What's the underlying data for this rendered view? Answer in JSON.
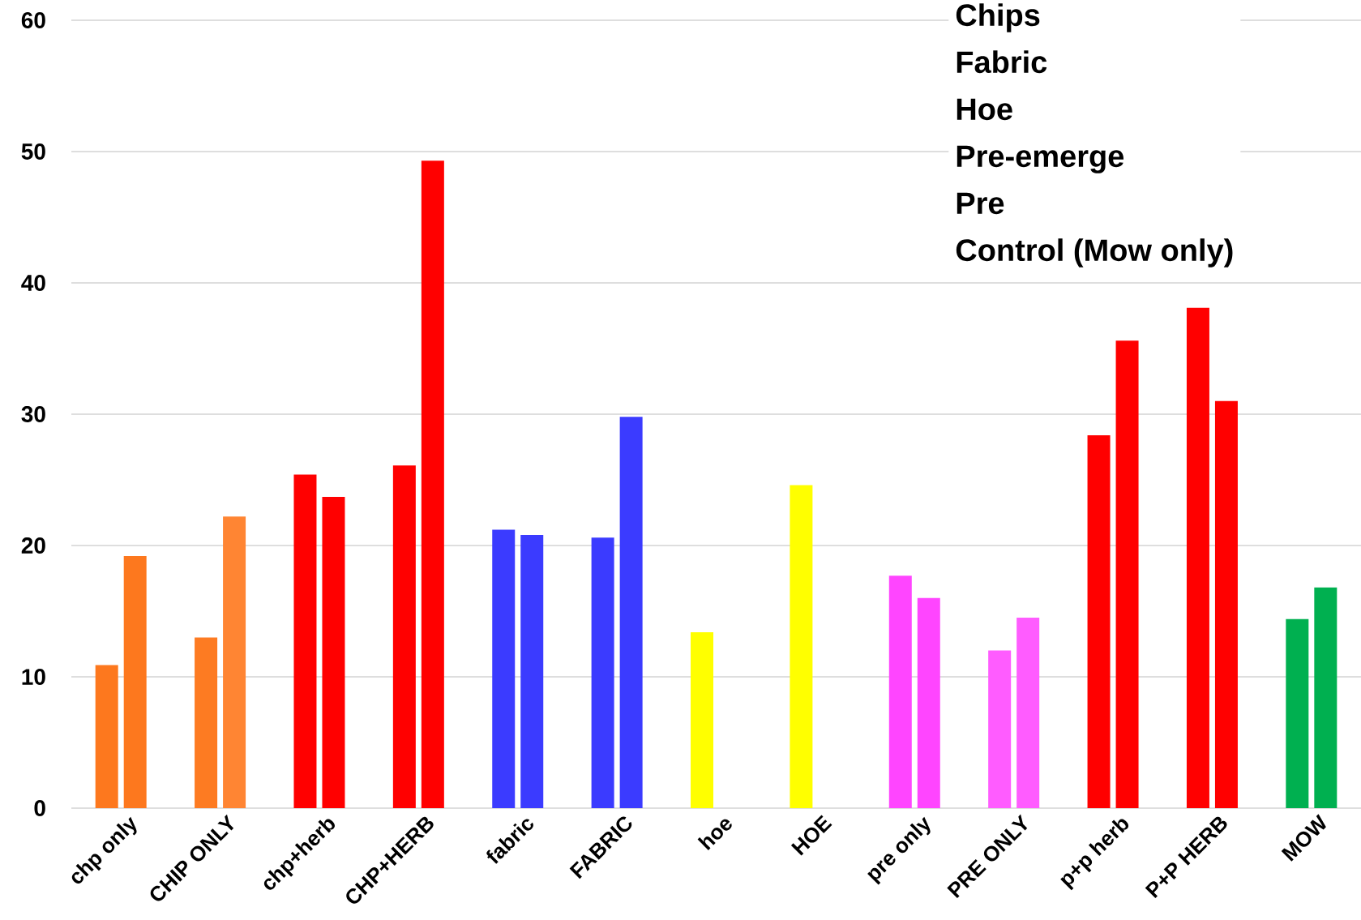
{
  "chart_data": {
    "type": "bar",
    "categories": [
      "chp only",
      "CHIP ONLY",
      "chp+herb",
      "CHP+HERB",
      "fabric",
      "FABRIC",
      "hoe",
      "HOE",
      "pre only",
      "PRE ONLY",
      "p+p herb",
      "P+P HERB",
      "MOW"
    ],
    "series": [
      {
        "colors": [
          "#fd781e",
          "#fd7b22",
          "#ff0000",
          "#ff0000",
          "#3b3bff",
          "#3b3bff",
          "#ffff00",
          "#ffff00",
          "#ff45ff",
          "#ff5cff",
          "#ff0000",
          "#ff0000",
          "#00b050"
        ],
        "values": [
          10.9,
          13.0,
          25.4,
          26.1,
          21.2,
          20.6,
          13.4,
          24.6,
          17.7,
          12.0,
          28.4,
          38.1,
          14.4
        ]
      },
      {
        "colors": [
          "#fd781e",
          "#ff8533",
          "#ff0000",
          "#ff0000",
          "#3b3bff",
          "#3b3bff",
          null,
          null,
          "#ff45ff",
          "#ff5cff",
          "#ff0000",
          "#ff0000",
          "#00b050"
        ],
        "values": [
          19.2,
          22.2,
          23.7,
          49.3,
          20.8,
          29.8,
          null,
          null,
          16.0,
          14.5,
          35.6,
          31.0,
          16.8
        ]
      }
    ],
    "annotations": [
      "Chips",
      "Fabric",
      "Hoe",
      "Pre-emerge",
      "Pre",
      "Control (Mow only)"
    ],
    "ylim": [
      0,
      60
    ],
    "yticks": [
      0,
      10,
      20,
      30,
      40,
      50,
      60
    ],
    "grid": "y"
  }
}
